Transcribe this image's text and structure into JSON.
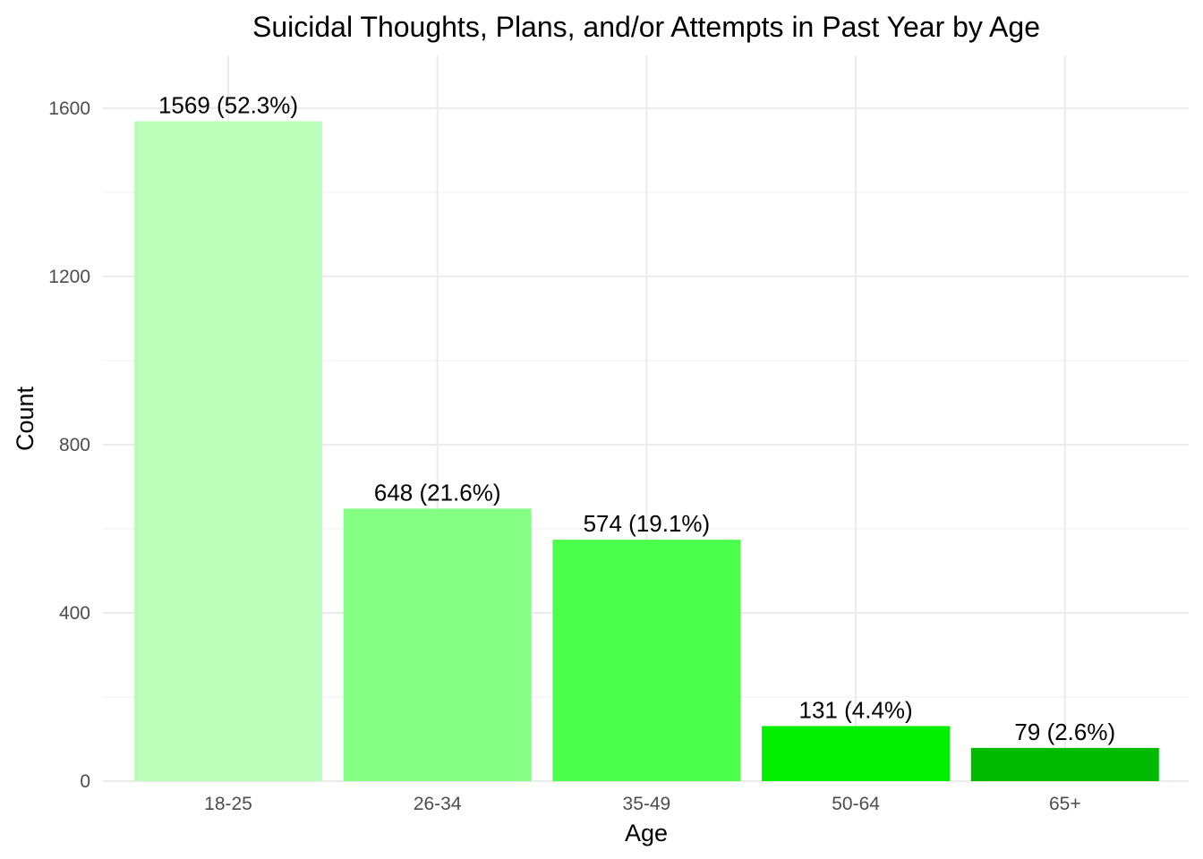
{
  "chart_data": {
    "type": "bar",
    "title": "Suicidal Thoughts, Plans, and/or Attempts in Past Year by Age",
    "xlabel": "Age",
    "ylabel": "Count",
    "categories": [
      "18-25",
      "26-34",
      "35-49",
      "50-64",
      "65+"
    ],
    "values": [
      1569,
      648,
      574,
      131,
      79
    ],
    "data_labels": [
      "1569 (52.3%)",
      "648 (21.6%)",
      "574 (19.1%)",
      "131 (4.4%)",
      "79 (2.6%)"
    ],
    "colors": [
      "#bbffbb",
      "#84ff84",
      "#4dff4d",
      "#00f000",
      "#00bb00"
    ],
    "yticks": [
      0,
      400,
      800,
      1200,
      1600
    ],
    "ytick_labels": [
      "0",
      "400",
      "800",
      "1200",
      "1600"
    ],
    "ylim": [
      0,
      1660
    ],
    "grid": true,
    "legend": "none"
  }
}
